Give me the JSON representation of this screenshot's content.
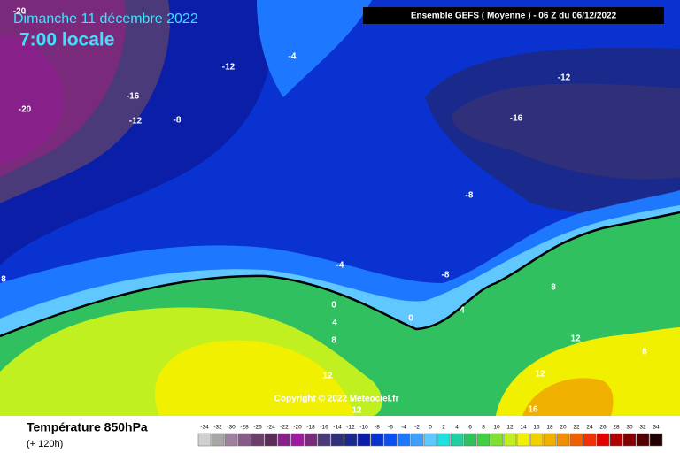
{
  "header": {
    "date": "Dimanche 11 décembre 2022",
    "time": "7:00 locale",
    "model": "Ensemble GEFS  ( Moyenne )  -  06 Z du 06/12/2022"
  },
  "map": {
    "contour_labels": [
      -20,
      -12,
      -4,
      -16,
      -12,
      -8,
      -20,
      -12,
      -16,
      -8,
      -4,
      -8,
      0,
      4,
      8,
      0,
      4,
      8,
      12,
      8,
      12,
      12,
      12,
      16,
      8
    ],
    "copyright": "Copyright © 2022 Meteociel.fr"
  },
  "footer": {
    "title": "Température 850hPa",
    "lead": "(+ 120h)"
  },
  "legend": {
    "ticks": [
      -34,
      -32,
      -30,
      -28,
      -26,
      -24,
      -22,
      -20,
      -18,
      -16,
      -14,
      -12,
      -10,
      -8,
      -6,
      -4,
      -2,
      0,
      2,
      4,
      6,
      8,
      10,
      12,
      14,
      16,
      18,
      20,
      22,
      24,
      26,
      28,
      30,
      32,
      34
    ],
    "colors": [
      "#d0d0d0",
      "#a8a8a8",
      "#a080a0",
      "#8a5a8a",
      "#6c3e6c",
      "#5a2c5a",
      "#88208a",
      "#a01aa0",
      "#7a2a7a",
      "#4a3a7a",
      "#30307a",
      "#1a2a8c",
      "#0a1ea8",
      "#0a32d0",
      "#0a50f0",
      "#1e78ff",
      "#40a0ff",
      "#60c8ff",
      "#20e0e0",
      "#20d0a0",
      "#30c060",
      "#40d040",
      "#80e030",
      "#c0f020",
      "#f0f000",
      "#f0d000",
      "#f0b000",
      "#f09000",
      "#f06000",
      "#f03000",
      "#e00000",
      "#b00000",
      "#800000",
      "#500000",
      "#200000"
    ]
  }
}
